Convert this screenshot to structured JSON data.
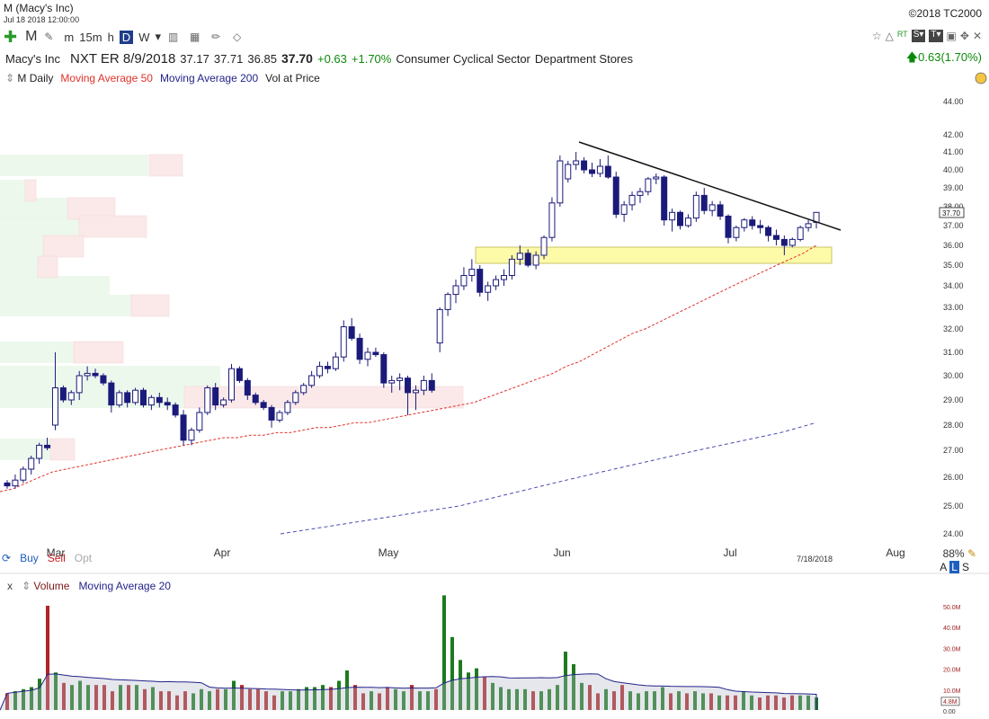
{
  "header": {
    "title": "M (Macy's Inc)",
    "datetime": "Jul 18 2018 12:00:00",
    "copyright": "©2018 TC2000"
  },
  "toolbar": {
    "symbol": "M",
    "intervals": [
      "m",
      "15m",
      "h",
      "D",
      "W"
    ],
    "selected_interval": "D",
    "right_rt": "RT",
    "right_s": "S▾",
    "right_t": "T▾"
  },
  "quote": {
    "name": "Macy's Inc",
    "next_earnings": "NXT ER 8/9/2018",
    "open": "37.17",
    "high": "37.71",
    "low": "36.85",
    "close": "37.70",
    "change": "+0.63",
    "change_pct": "+1.70%",
    "sector": "Consumer Cyclical Sector",
    "industry": "Department Stores",
    "right_change": "0.63(1.70%)"
  },
  "legend": {
    "series": "M Daily",
    "ma50": "Moving Average 50",
    "ma200": "Moving Average 200",
    "vol_at_price": "Vol at Price"
  },
  "bottom": {
    "buy": "Buy",
    "sell": "Sell",
    "opt": "Opt",
    "zoom": "88%",
    "a": "A",
    "l": "L",
    "s": "S",
    "cursor_date": "7/18/2018"
  },
  "volume_panel": {
    "close_x": "x",
    "title": "Volume",
    "ma_label": "Moving Average 20"
  },
  "colors": {
    "up_candle": "#ffffff",
    "down_candle": "#1a1a7a",
    "ma50": "#e0322b",
    "ma200": "#4a4ab0",
    "vol_up": "#1e7a1e",
    "vol_down": "#b02525",
    "highlight_zone": "#fdfaa8",
    "trendline": "#111111"
  },
  "chart_data": {
    "type": "candlestick",
    "symbol": "M",
    "x_labels": [
      "Mar",
      "Apr",
      "May",
      "Jun",
      "Jul",
      "Aug"
    ],
    "y_ticks": [
      "44.00",
      "42.00",
      "41.00",
      "40.00",
      "39.00",
      "38.00",
      "37.00",
      "36.00",
      "35.00",
      "34.00",
      "33.00",
      "32.00",
      "31.00",
      "30.00",
      "29.00",
      "28.00",
      "27.00",
      "26.00",
      "25.00",
      "24.00"
    ],
    "ylim": [
      24,
      44
    ],
    "last_price_label": "37.70",
    "candles": [
      [
        25.8,
        25.9,
        25.6,
        25.7
      ],
      [
        25.7,
        26.1,
        25.6,
        25.9
      ],
      [
        25.9,
        26.4,
        25.8,
        26.3
      ],
      [
        26.3,
        26.8,
        26.1,
        26.7
      ],
      [
        26.7,
        27.3,
        26.5,
        27.2
      ],
      [
        27.2,
        27.5,
        27.0,
        27.1
      ],
      [
        28.0,
        31.0,
        27.8,
        29.5
      ],
      [
        29.5,
        29.6,
        28.9,
        29.0
      ],
      [
        29.0,
        29.4,
        28.8,
        29.3
      ],
      [
        29.3,
        30.2,
        29.0,
        30.0
      ],
      [
        30.0,
        30.4,
        29.8,
        30.1
      ],
      [
        30.1,
        30.3,
        29.9,
        30.0
      ],
      [
        30.0,
        30.1,
        29.6,
        29.7
      ],
      [
        29.7,
        29.8,
        28.5,
        28.8
      ],
      [
        28.8,
        29.4,
        28.7,
        29.3
      ],
      [
        29.3,
        29.4,
        28.7,
        28.9
      ],
      [
        28.9,
        29.5,
        28.8,
        29.4
      ],
      [
        29.4,
        29.5,
        28.7,
        28.8
      ],
      [
        28.8,
        29.2,
        28.6,
        29.1
      ],
      [
        29.1,
        29.3,
        28.7,
        28.9
      ],
      [
        28.9,
        29.1,
        28.6,
        28.8
      ],
      [
        28.8,
        28.9,
        28.3,
        28.4
      ],
      [
        28.4,
        28.6,
        27.2,
        27.4
      ],
      [
        27.4,
        27.9,
        27.2,
        27.8
      ],
      [
        27.8,
        28.7,
        27.7,
        28.5
      ],
      [
        28.5,
        29.6,
        28.4,
        29.5
      ],
      [
        29.5,
        29.7,
        28.6,
        28.8
      ],
      [
        28.8,
        29.1,
        28.7,
        29.0
      ],
      [
        29.0,
        30.5,
        28.9,
        30.3
      ],
      [
        30.3,
        30.4,
        29.7,
        29.8
      ],
      [
        29.8,
        29.9,
        29.0,
        29.2
      ],
      [
        29.2,
        29.3,
        28.8,
        28.9
      ],
      [
        28.9,
        29.0,
        28.6,
        28.7
      ],
      [
        28.7,
        28.8,
        27.9,
        28.2
      ],
      [
        28.2,
        28.6,
        28.1,
        28.5
      ],
      [
        28.5,
        29.0,
        28.4,
        28.9
      ],
      [
        28.9,
        29.4,
        28.8,
        29.3
      ],
      [
        29.3,
        29.7,
        29.2,
        29.6
      ],
      [
        29.6,
        30.2,
        29.5,
        30.0
      ],
      [
        30.0,
        30.6,
        29.9,
        30.4
      ],
      [
        30.4,
        30.6,
        30.1,
        30.3
      ],
      [
        30.3,
        31.0,
        30.2,
        30.8
      ],
      [
        30.8,
        32.4,
        30.6,
        32.1
      ],
      [
        32.1,
        32.5,
        31.5,
        31.6
      ],
      [
        31.6,
        31.8,
        30.5,
        30.7
      ],
      [
        30.7,
        31.2,
        30.4,
        31.0
      ],
      [
        31.0,
        31.2,
        30.8,
        30.9
      ],
      [
        30.9,
        31.0,
        29.5,
        29.7
      ],
      [
        29.7,
        30.0,
        29.3,
        29.8
      ],
      [
        29.8,
        30.1,
        29.4,
        29.9
      ],
      [
        29.9,
        30.0,
        28.4,
        29.3
      ],
      [
        29.3,
        29.6,
        28.6,
        29.4
      ],
      [
        29.4,
        30.0,
        29.2,
        29.8
      ],
      [
        29.8,
        30.1,
        29.3,
        29.4
      ],
      [
        31.4,
        33.0,
        31.0,
        32.9
      ],
      [
        32.9,
        33.7,
        32.6,
        33.6
      ],
      [
        33.6,
        34.3,
        33.2,
        34.0
      ],
      [
        34.0,
        34.9,
        33.8,
        34.5
      ],
      [
        34.5,
        35.3,
        34.2,
        34.8
      ],
      [
        34.8,
        35.0,
        33.5,
        33.7
      ],
      [
        33.7,
        34.2,
        33.3,
        34.0
      ],
      [
        34.0,
        34.5,
        33.8,
        34.3
      ],
      [
        34.3,
        34.8,
        34.0,
        34.5
      ],
      [
        34.5,
        35.5,
        34.3,
        35.3
      ],
      [
        35.3,
        36.0,
        35.0,
        35.6
      ],
      [
        35.6,
        35.8,
        34.9,
        35.0
      ],
      [
        35.0,
        35.7,
        34.8,
        35.5
      ],
      [
        35.5,
        36.5,
        35.3,
        36.4
      ],
      [
        36.4,
        38.5,
        36.2,
        38.2
      ],
      [
        38.2,
        40.8,
        38.0,
        40.5
      ],
      [
        39.5,
        40.5,
        39.3,
        40.3
      ],
      [
        40.3,
        41.0,
        40.0,
        40.5
      ],
      [
        40.5,
        40.7,
        39.8,
        40.0
      ],
      [
        40.0,
        40.4,
        39.6,
        39.8
      ],
      [
        39.8,
        40.6,
        39.6,
        40.2
      ],
      [
        40.2,
        40.8,
        39.5,
        39.6
      ],
      [
        39.6,
        39.9,
        37.4,
        37.6
      ],
      [
        37.6,
        38.3,
        37.2,
        38.1
      ],
      [
        38.1,
        38.8,
        37.8,
        38.6
      ],
      [
        38.6,
        39.0,
        38.2,
        38.8
      ],
      [
        38.8,
        39.6,
        38.6,
        39.5
      ],
      [
        39.5,
        39.8,
        39.2,
        39.6
      ],
      [
        39.6,
        39.7,
        37.0,
        37.3
      ],
      [
        37.3,
        37.9,
        36.7,
        37.7
      ],
      [
        37.7,
        37.8,
        36.8,
        37.0
      ],
      [
        37.0,
        37.6,
        36.9,
        37.4
      ],
      [
        37.4,
        38.8,
        37.2,
        38.6
      ],
      [
        38.6,
        39.0,
        37.6,
        37.8
      ],
      [
        37.8,
        38.3,
        37.5,
        38.1
      ],
      [
        38.1,
        38.3,
        37.3,
        37.5
      ],
      [
        37.5,
        37.6,
        36.1,
        36.4
      ],
      [
        36.4,
        37.0,
        36.2,
        36.9
      ],
      [
        36.9,
        37.4,
        36.7,
        37.3
      ],
      [
        37.3,
        37.5,
        36.8,
        37.0
      ],
      [
        37.0,
        37.3,
        36.6,
        36.9
      ],
      [
        36.9,
        37.0,
        36.2,
        36.5
      ],
      [
        36.5,
        36.8,
        36.0,
        36.3
      ],
      [
        36.3,
        36.5,
        35.5,
        36.0
      ],
      [
        36.0,
        36.4,
        35.9,
        36.3
      ],
      [
        36.3,
        37.0,
        36.2,
        36.9
      ],
      [
        36.9,
        37.3,
        36.7,
        37.1
      ],
      [
        37.17,
        37.71,
        36.85,
        37.7
      ]
    ],
    "ma50": [
      25.5,
      25.6,
      25.8,
      26.0,
      26.2,
      26.3,
      26.4,
      26.5,
      26.6,
      26.7,
      26.8,
      26.9,
      27.0,
      27.1,
      27.2,
      27.3,
      27.4,
      27.5,
      27.5,
      27.6,
      27.6,
      27.7,
      27.7,
      27.8,
      27.9,
      27.9,
      28.0,
      28.1,
      28.1,
      28.2,
      28.3,
      28.4,
      28.5,
      28.6,
      28.7,
      28.8,
      28.9,
      29.1,
      29.3,
      29.5,
      29.7,
      29.9,
      30.1,
      30.4,
      30.6,
      30.9,
      31.2,
      31.5,
      31.8,
      32.0,
      32.3,
      32.6,
      32.9,
      33.2,
      33.5,
      33.8,
      34.1,
      34.4,
      34.7,
      35.0,
      35.3,
      35.6,
      36.0
    ],
    "ma200": [
      24.0,
      24.2,
      24.4,
      24.6,
      24.8,
      25.0,
      25.3,
      25.6,
      25.9,
      26.2,
      26.5,
      26.8,
      27.1,
      27.4,
      27.7,
      28.1
    ],
    "volume_millions": [
      8,
      9,
      10,
      11,
      15,
      50,
      18,
      13,
      12,
      14,
      12,
      12,
      12,
      9,
      12,
      12,
      12,
      10,
      11,
      9,
      9,
      7,
      9,
      8,
      10,
      9,
      10,
      10,
      14,
      12,
      10,
      10,
      9,
      7,
      9,
      9,
      10,
      11,
      11,
      12,
      11,
      14,
      19,
      12,
      8,
      9,
      8,
      11,
      10,
      9,
      12,
      9,
      9,
      10,
      55,
      35,
      24,
      18,
      20,
      16,
      13,
      11,
      10,
      10,
      10,
      9,
      9,
      10,
      12,
      28,
      22,
      13,
      12,
      8,
      10,
      9,
      12,
      9,
      8,
      9,
      9,
      11,
      8,
      9,
      8,
      9,
      8,
      8,
      7,
      7,
      7,
      9,
      7,
      6,
      7,
      7,
      6,
      7,
      7,
      7,
      6
    ],
    "volume_y_ticks": [
      "50.0M",
      "40.0M",
      "30.0M",
      "20.0M",
      "10.0M",
      "4.8M",
      "0.00"
    ]
  }
}
